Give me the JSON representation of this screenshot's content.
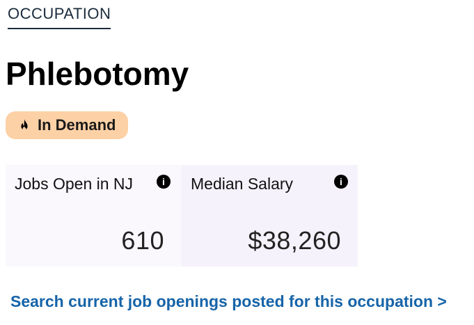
{
  "header": {
    "eyebrow": "OCCUPATION",
    "title": "Phlebotomy"
  },
  "badge": {
    "label": "In Demand",
    "icon": "flame-icon",
    "color": "#fdd1a6"
  },
  "stats": [
    {
      "label": "Jobs Open in NJ",
      "value": "610",
      "info_icon": "i"
    },
    {
      "label": "Median Salary",
      "value": "$38,260",
      "info_icon": "i"
    }
  ],
  "link": {
    "text": "Search current job openings posted for this occupation >",
    "color": "#1664a8"
  }
}
